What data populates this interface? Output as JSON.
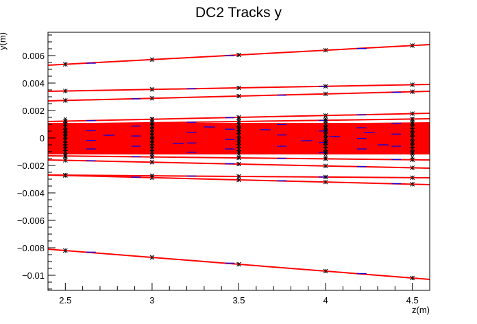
{
  "chart_data": {
    "type": "line",
    "title": "DC2 Tracks y",
    "xlabel": "z(m)",
    "ylabel": "y(m)",
    "xlim": [
      2.4,
      4.6
    ],
    "ylim": [
      -0.0111,
      0.0077
    ],
    "x_ticks": [
      2.5,
      3,
      3.5,
      4,
      4.5
    ],
    "x_tick_labels": [
      "2.5",
      "3",
      "3.5",
      "4",
      "4.5"
    ],
    "y_ticks": [
      0.006,
      0.004,
      0.002,
      0,
      -0.002,
      -0.004,
      -0.006,
      -0.008,
      -0.01
    ],
    "y_tick_labels": [
      "0.006",
      "0.004",
      "0.002",
      "0",
      "−0.002",
      "−0.004",
      "−0.006",
      "−0.008",
      "−0.01"
    ],
    "grid": false,
    "legend": "none",
    "colors": {
      "track": "#ff0000",
      "segment": "#2200cc",
      "hit": "#000000",
      "frame": "#000000"
    },
    "hit_planes": [
      2.5,
      3,
      3.5,
      4,
      4.5
    ],
    "x": [
      2.4,
      4.6
    ],
    "series": [
      {
        "values": [
          0.0053,
          0.0068
        ]
      },
      {
        "values": [
          0.0034,
          0.0039
        ]
      },
      {
        "values": [
          0.0027,
          0.0034
        ]
      },
      {
        "values": [
          0.0012,
          0.0018
        ]
      },
      {
        "values": [
          0.001,
          0.0014
        ]
      },
      {
        "values": [
          0.0008,
          0.0011
        ]
      },
      {
        "values": [
          0.0005,
          0.0008
        ]
      },
      {
        "values": [
          0.0003,
          0.0006
        ]
      },
      {
        "values": [
          0.0001,
          0.0003
        ]
      },
      {
        "values": [
          -0.0002,
          0.0
        ]
      },
      {
        "values": [
          -0.0004,
          -0.0003
        ]
      },
      {
        "values": [
          -0.0006,
          -0.0006
        ]
      },
      {
        "values": [
          -0.0008,
          -0.0008
        ]
      },
      {
        "values": [
          -0.001,
          -0.0011
        ]
      },
      {
        "values": [
          -0.0013,
          -0.0016
        ]
      },
      {
        "values": [
          -0.0016,
          -0.0022
        ]
      },
      {
        "values": [
          -0.0027,
          -0.0029
        ]
      },
      {
        "values": [
          -0.0027,
          -0.0034
        ]
      },
      {
        "values": [
          -0.0081,
          -0.0103
        ]
      }
    ],
    "band": {
      "y_min": -0.0012,
      "y_max": 0.0011
    }
  }
}
